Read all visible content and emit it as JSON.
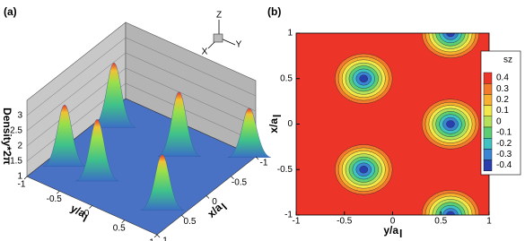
{
  "chart_data": [
    {
      "type": "surface3d",
      "panel_label": "(a)",
      "zlabel": "Density*2π",
      "xlabel": {
        "text": "x/a",
        "sub": "l"
      },
      "ylabel": {
        "text": "y/a",
        "sub": "l"
      },
      "xlim": [
        -1,
        1
      ],
      "xticks": [
        -1,
        -0.5,
        0,
        0.5,
        1
      ],
      "ylim": [
        -1,
        1
      ],
      "yticks": [
        -1,
        -0.5,
        0,
        0.5,
        1
      ],
      "zlim": [
        1,
        3
      ],
      "zticks": [
        1,
        1.5,
        2,
        2.5,
        3
      ],
      "orientation_axes": [
        "Z",
        "Y",
        "X"
      ],
      "peaks": {
        "x": [
          -0.5,
          0.5,
          -0.5,
          0.5,
          0.5,
          -1
        ],
        "y": [
          -0.8,
          -0.8,
          0.2,
          -0.3,
          0.7,
          0.9
        ],
        "z": [
          3,
          2.9,
          3,
          2.9,
          2.7,
          2.5
        ]
      }
    },
    {
      "type": "contour",
      "panel_label": "(b)",
      "xlabel": {
        "text": "y/a",
        "sub": "l"
      },
      "ylabel": {
        "text": "x/a",
        "sub": "l"
      },
      "xlim": [
        -1,
        1
      ],
      "xticks": [
        -1,
        -0.5,
        0,
        0.5,
        1
      ],
      "ylim": [
        -1,
        1
      ],
      "yticks": [
        -1,
        -0.5,
        0,
        0.5,
        1
      ],
      "colorbar": {
        "title": "sz",
        "levels": [
          0.4,
          0.3,
          0.2,
          0.1,
          0,
          -0.1,
          -0.2,
          -0.3,
          -0.4
        ],
        "colors": [
          "#ec3428",
          "#f47a2c",
          "#f8b12f",
          "#f2e84a",
          "#b4e05a",
          "#5ccf74",
          "#3fc2c0",
          "#3a86d4",
          "#2a3fae"
        ]
      },
      "minima": {
        "x": [
          -0.3,
          0.6,
          -0.3,
          0.6,
          0.6
        ],
        "y": [
          0.5,
          0,
          -0.5,
          1,
          -1
        ]
      }
    }
  ]
}
